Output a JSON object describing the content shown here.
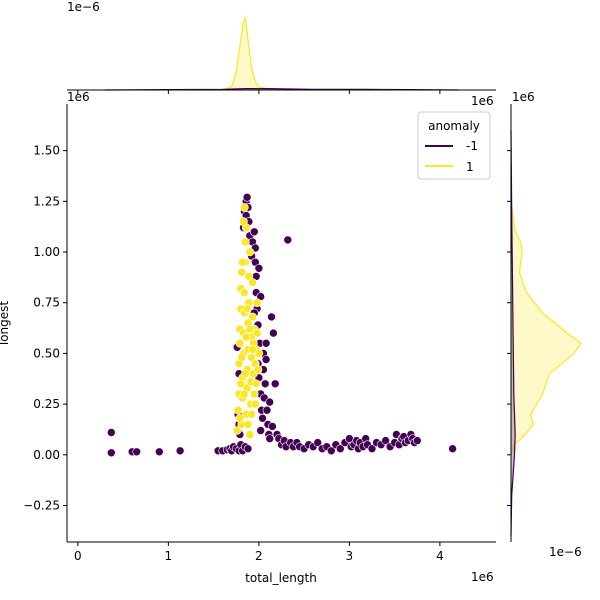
{
  "chart_data": {
    "type": "scatter",
    "title": "",
    "xlabel": "total_length",
    "ylabel": "longest",
    "x_exponent_label": "1e6",
    "y_exponent_label": "1e6",
    "y_exponent_label_right": "1e6",
    "top_marginal_exponent_label": "1e−6",
    "right_marginal_exponent_label": "1e−6",
    "right_marginal_top_label": "1e6",
    "xlim": [
      -0.12,
      4.62
    ],
    "ylim": [
      -0.43,
      1.73
    ],
    "x_ticks": [
      0,
      1,
      2,
      3,
      4
    ],
    "x_tick_labels": [
      "0",
      "1",
      "2",
      "3",
      "4"
    ],
    "y_ticks": [
      -0.25,
      0.0,
      0.25,
      0.5,
      0.75,
      1.0,
      1.25,
      1.5
    ],
    "y_tick_labels": [
      "−0.25",
      "0.00",
      "0.25",
      "0.50",
      "0.75",
      "1.00",
      "1.25",
      "1.50"
    ],
    "legend": {
      "title": "anomaly",
      "placement": "top-right",
      "entries": [
        {
          "label": "-1",
          "color": "#440154"
        },
        {
          "label": "1",
          "color": "#fde725"
        }
      ]
    },
    "grid": false,
    "series": [
      {
        "name": "-1",
        "color": "#440154",
        "points": [
          [
            0.37,
            0.01
          ],
          [
            0.37,
            0.11
          ],
          [
            0.6,
            0.015
          ],
          [
            0.65,
            0.015
          ],
          [
            0.9,
            0.015
          ],
          [
            1.13,
            0.02
          ],
          [
            1.55,
            0.02
          ],
          [
            1.6,
            0.02
          ],
          [
            1.65,
            0.025
          ],
          [
            1.68,
            0.03
          ],
          [
            1.7,
            0.02
          ],
          [
            1.72,
            0.04
          ],
          [
            1.75,
            0.03
          ],
          [
            1.78,
            0.02
          ],
          [
            1.8,
            0.05
          ],
          [
            1.82,
            0.02
          ],
          [
            1.85,
            0.04
          ],
          [
            1.88,
            0.03
          ],
          [
            1.76,
            0.53
          ],
          [
            1.78,
            0.4
          ],
          [
            1.77,
            0.2
          ],
          [
            1.79,
            0.1
          ],
          [
            1.78,
            0.15
          ],
          [
            1.8,
            0.35
          ],
          [
            1.83,
            1.12
          ],
          [
            1.84,
            1.2
          ],
          [
            1.85,
            1.22
          ],
          [
            1.86,
            1.25
          ],
          [
            1.87,
            1.27
          ],
          [
            1.88,
            1.22
          ],
          [
            1.86,
            1.18
          ],
          [
            1.89,
            1.15
          ],
          [
            1.9,
            1.08
          ],
          [
            1.9,
            1.0
          ],
          [
            1.92,
            0.98
          ],
          [
            1.93,
            1.05
          ],
          [
            1.95,
            1.1
          ],
          [
            1.96,
            1.02
          ],
          [
            1.96,
            0.95
          ],
          [
            1.97,
            0.88
          ],
          [
            1.97,
            0.8
          ],
          [
            1.98,
            0.72
          ],
          [
            1.95,
            0.7
          ],
          [
            1.99,
            0.64
          ],
          [
            2.0,
            0.92
          ],
          [
            2.02,
            0.78
          ],
          [
            2.01,
            0.55
          ],
          [
            1.99,
            0.45
          ],
          [
            2.0,
            0.38
          ],
          [
            2.02,
            0.3
          ],
          [
            2.03,
            0.22
          ],
          [
            2.02,
            0.12
          ],
          [
            2.04,
            0.18
          ],
          [
            2.05,
            0.42
          ],
          [
            2.06,
            0.28
          ],
          [
            2.07,
            0.35
          ],
          [
            2.05,
            0.5
          ],
          [
            2.08,
            0.47
          ],
          [
            2.08,
            0.55
          ],
          [
            2.09,
            0.22
          ],
          [
            2.1,
            0.15
          ],
          [
            2.11,
            0.1
          ],
          [
            2.12,
            0.08
          ],
          [
            2.14,
            0.68
          ],
          [
            2.16,
            0.6
          ],
          [
            2.12,
            0.26
          ],
          [
            2.15,
            0.14
          ],
          [
            2.18,
            0.35
          ],
          [
            2.2,
            0.1
          ],
          [
            2.22,
            0.08
          ],
          [
            2.25,
            0.05
          ],
          [
            2.28,
            0.07
          ],
          [
            2.3,
            0.04
          ],
          [
            2.32,
            1.06
          ],
          [
            2.35,
            0.06
          ],
          [
            2.38,
            0.04
          ],
          [
            2.42,
            0.06
          ],
          [
            2.45,
            0.04
          ],
          [
            2.5,
            0.03
          ],
          [
            2.55,
            0.05
          ],
          [
            2.6,
            0.04
          ],
          [
            2.65,
            0.06
          ],
          [
            2.7,
            0.03
          ],
          [
            2.75,
            0.04
          ],
          [
            2.8,
            0.02
          ],
          [
            2.85,
            0.05
          ],
          [
            2.9,
            0.03
          ],
          [
            2.95,
            0.06
          ],
          [
            3.0,
            0.08
          ],
          [
            3.02,
            0.04
          ],
          [
            3.05,
            0.05
          ],
          [
            3.08,
            0.07
          ],
          [
            3.1,
            0.03
          ],
          [
            3.12,
            0.06
          ],
          [
            3.15,
            0.04
          ],
          [
            3.18,
            0.08
          ],
          [
            3.2,
            0.05
          ],
          [
            3.25,
            0.03
          ],
          [
            3.3,
            0.06
          ],
          [
            3.35,
            0.05
          ],
          [
            3.4,
            0.07
          ],
          [
            3.45,
            0.04
          ],
          [
            3.5,
            0.06
          ],
          [
            3.52,
            0.1
          ],
          [
            3.55,
            0.05
          ],
          [
            3.58,
            0.08
          ],
          [
            3.6,
            0.09
          ],
          [
            3.62,
            0.06
          ],
          [
            3.65,
            0.07
          ],
          [
            3.68,
            0.1
          ],
          [
            3.7,
            0.08
          ],
          [
            3.72,
            0.06
          ],
          [
            3.75,
            0.07
          ],
          [
            4.14,
            0.03
          ]
        ]
      },
      {
        "name": "1",
        "color": "#fde725",
        "points": [
          [
            1.76,
            0.12
          ],
          [
            1.77,
            0.22
          ],
          [
            1.78,
            0.3
          ],
          [
            1.78,
            0.45
          ],
          [
            1.79,
            0.55
          ],
          [
            1.79,
            0.62
          ],
          [
            1.8,
            0.72
          ],
          [
            1.8,
            0.82
          ],
          [
            1.81,
            0.9
          ],
          [
            1.81,
            0.15
          ],
          [
            1.82,
            0.28
          ],
          [
            1.82,
            0.38
          ],
          [
            1.83,
            0.5
          ],
          [
            1.83,
            0.6
          ],
          [
            1.84,
            0.7
          ],
          [
            1.84,
            0.8
          ],
          [
            1.85,
            0.95
          ],
          [
            1.85,
            1.05
          ],
          [
            1.86,
            1.12
          ],
          [
            1.84,
            1.22
          ],
          [
            1.86,
            0.2
          ],
          [
            1.87,
            0.33
          ],
          [
            1.87,
            0.42
          ],
          [
            1.88,
            0.52
          ],
          [
            1.88,
            0.65
          ],
          [
            1.89,
            0.75
          ],
          [
            1.89,
            0.88
          ],
          [
            1.9,
            1.0
          ],
          [
            1.9,
            0.1
          ],
          [
            1.91,
            0.25
          ],
          [
            1.91,
            0.36
          ],
          [
            1.92,
            0.48
          ],
          [
            1.92,
            0.58
          ],
          [
            1.93,
            0.68
          ],
          [
            1.93,
            0.85
          ],
          [
            1.94,
            0.4
          ],
          [
            1.94,
            0.55
          ],
          [
            1.95,
            0.3
          ],
          [
            1.95,
            0.62
          ],
          [
            1.96,
            0.45
          ],
          [
            1.97,
            0.52
          ],
          [
            1.97,
            0.35
          ],
          [
            1.98,
            0.6
          ],
          [
            1.99,
            0.42
          ],
          [
            2.0,
            0.5
          ],
          [
            1.82,
            0.95
          ],
          [
            1.83,
            1.15
          ],
          [
            1.86,
            0.58
          ],
          [
            1.85,
            0.4
          ],
          [
            1.84,
            0.3
          ],
          [
            1.8,
            0.35
          ],
          [
            1.79,
            0.18
          ],
          [
            1.81,
            0.48
          ],
          [
            1.87,
            0.72
          ],
          [
            1.88,
            0.15
          ],
          [
            1.9,
            0.62
          ],
          [
            1.92,
            0.2
          ],
          [
            1.93,
            0.52
          ],
          [
            1.96,
            0.25
          ],
          [
            1.98,
            0.75
          ]
        ]
      }
    ],
    "marginal_x": {
      "series": [
        {
          "name": "1",
          "x": [
            1.6,
            1.7,
            1.75,
            1.8,
            1.83,
            1.85,
            1.88,
            1.92,
            1.96,
            2.0,
            2.1,
            2.3,
            2.6
          ],
          "density": [
            0.0,
            0.05,
            0.25,
            0.7,
            0.95,
            1.0,
            0.7,
            0.3,
            0.12,
            0.04,
            0.02,
            0.01,
            0.0
          ]
        },
        {
          "name": "-1",
          "x": [
            0.3,
            1.0,
            1.6,
            1.85,
            2.1,
            2.6,
            3.2,
            3.7,
            4.2
          ],
          "density": [
            0.0,
            0.005,
            0.01,
            0.02,
            0.02,
            0.01,
            0.008,
            0.006,
            0.0
          ]
        }
      ]
    },
    "marginal_y": {
      "series": [
        {
          "name": "1",
          "y": [
            0.0,
            0.05,
            0.1,
            0.15,
            0.2,
            0.3,
            0.4,
            0.5,
            0.55,
            0.6,
            0.7,
            0.8,
            0.9,
            1.0,
            1.05,
            1.1,
            1.2,
            1.25
          ],
          "density": [
            0.0,
            0.05,
            0.2,
            0.32,
            0.28,
            0.45,
            0.55,
            0.9,
            1.0,
            0.8,
            0.45,
            0.22,
            0.12,
            0.16,
            0.14,
            0.06,
            0.02,
            0.0
          ]
        },
        {
          "name": "-1",
          "y": [
            -0.4,
            -0.2,
            0.0,
            0.1,
            0.3,
            0.6,
            0.9,
            1.2,
            1.6
          ],
          "density": [
            0.0,
            0.01,
            0.05,
            0.06,
            0.04,
            0.03,
            0.02,
            0.01,
            0.0
          ]
        }
      ]
    }
  }
}
